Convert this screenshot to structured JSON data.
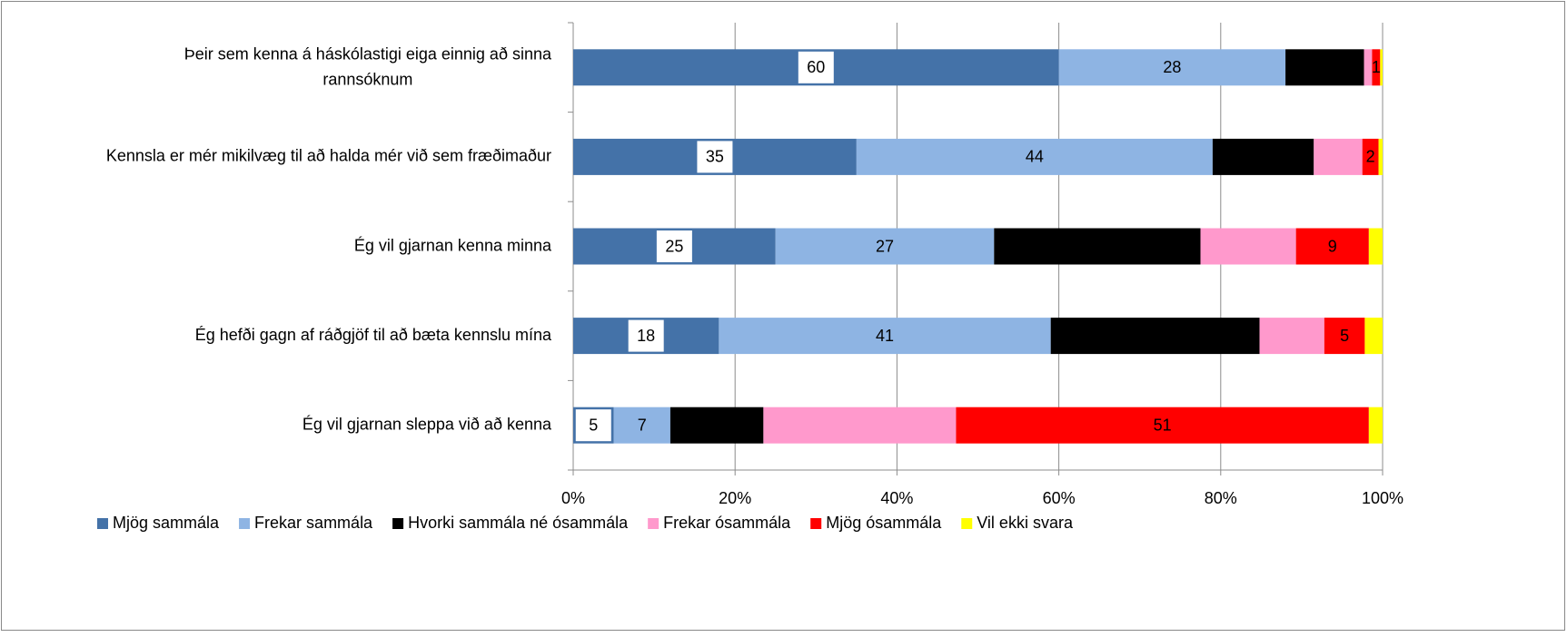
{
  "chart_data": {
    "type": "stacked_barh",
    "categories": [
      "Þeir sem kenna á háskólastigi eiga einnig að sinna rannsóknum",
      "Kennsla er mér mikilvæg til að halda mér við sem fræðimaður",
      "Ég vil gjarnan kenna minna",
      "Ég hefði gagn af ráðgjöf til að bæta kennslu mína",
      "Ég vil gjarnan sleppa við að kenna"
    ],
    "series": [
      {
        "name": "Mjög sammála",
        "color": "#4472a8",
        "values": [
          60,
          35,
          25,
          18,
          5
        ],
        "labels": true,
        "label_box": true
      },
      {
        "name": "Frekar sammála",
        "color": "#8eb4e3",
        "values": [
          28,
          44,
          27,
          41,
          7
        ],
        "labels": true
      },
      {
        "name": "Hvorki sammála né ósammála",
        "color": "#000000",
        "values": [
          9.7,
          12.5,
          25.5,
          25.8,
          11.5
        ]
      },
      {
        "name": "Frekar ósammála",
        "color": "#ff99cc",
        "values": [
          1,
          6,
          11.8,
          8,
          23.8
        ]
      },
      {
        "name": "Mjög ósammála",
        "color": "#ff0000",
        "values": [
          1,
          2,
          9,
          5,
          51
        ],
        "labels": true
      },
      {
        "name": "Vil ekki svara",
        "color": "#ffff00",
        "values": [
          0.3,
          0.5,
          1.7,
          2.2,
          1.7
        ]
      }
    ],
    "xlim": [
      0,
      100
    ],
    "xticks": [
      {
        "value": 0,
        "label": "0%"
      },
      {
        "value": 20,
        "label": "20%"
      },
      {
        "value": 40,
        "label": "40%"
      },
      {
        "value": 60,
        "label": "60%"
      },
      {
        "value": 80,
        "label": "80%"
      },
      {
        "value": 100,
        "label": "100%"
      }
    ],
    "grid": true,
    "legend": "bottom"
  }
}
